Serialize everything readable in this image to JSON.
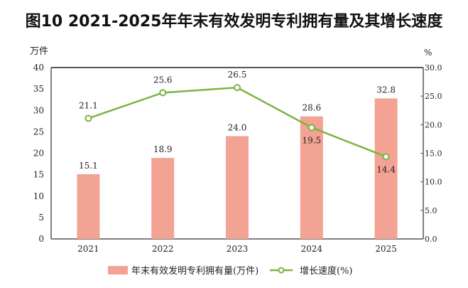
{
  "chart_data": {
    "type": "bar+line",
    "title": "图10 2021-2025年年末有效发明专利拥有量及其增长速度",
    "categories": [
      "2021",
      "2022",
      "2023",
      "2024",
      "2025"
    ],
    "left_axis": {
      "unit": "万件",
      "range": [
        0,
        40
      ],
      "ticks": [
        "0",
        "5",
        "10",
        "15",
        "20",
        "25",
        "30",
        "35",
        "40"
      ]
    },
    "right_axis": {
      "unit": "%",
      "range": [
        0,
        30
      ],
      "ticks": [
        "0.0",
        "5.0",
        "10.0",
        "15.0",
        "20.0",
        "25.0",
        "30.0"
      ]
    },
    "series": [
      {
        "name": "年末有效发明专利拥有量(万件)",
        "type": "bar",
        "axis": "left",
        "values": [
          15.1,
          18.9,
          24.0,
          28.6,
          32.8
        ],
        "labels": [
          "15.1",
          "18.9",
          "24.0",
          "28.6",
          "32.8"
        ],
        "color": "#f2a394"
      },
      {
        "name": "增长速度(%)",
        "type": "line",
        "axis": "right",
        "values": [
          21.1,
          25.6,
          26.5,
          19.5,
          14.4
        ],
        "labels": [
          "21.1",
          "25.6",
          "26.5",
          "19.5",
          "14.4"
        ],
        "color": "#7cb342"
      }
    ],
    "legend": "bottom",
    "grid": false
  }
}
